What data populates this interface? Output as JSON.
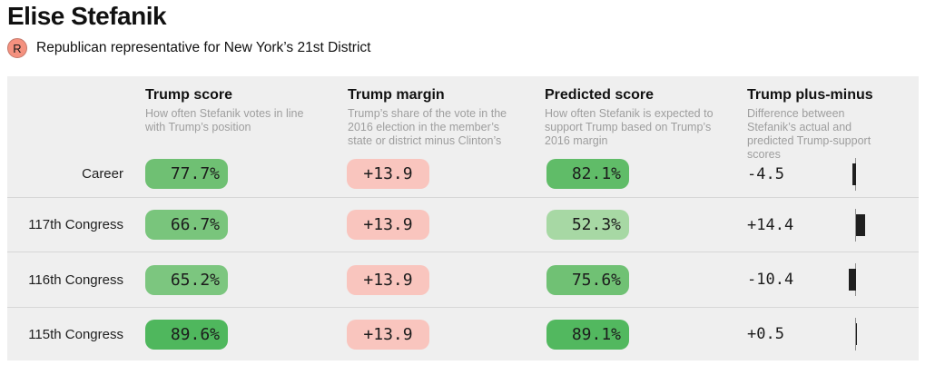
{
  "header": {
    "title": "Elise Stefanik",
    "party_badge": "R",
    "subtitle": "Republican representative for New York’s 21st District"
  },
  "colors": {
    "table_background": "#efefef",
    "margin_pill": "#f9c5be",
    "bar": "#1f1f1f",
    "axis": "#8f8f8f",
    "badge": "#f4917f"
  },
  "table": {
    "columns": [
      {
        "label": "Trump score",
        "description": "How often Stefanik votes in line with Trump’s position"
      },
      {
        "label": "Trump margin",
        "description": "Trump’s share of the vote in the 2016 election in the member’s state or district minus Clinton’s"
      },
      {
        "label": "Predicted score",
        "description": "How often Stefanik is expected to support Trump based on Trump’s 2016 margin"
      },
      {
        "label": "Trump plus-minus",
        "description": "Difference between Stefanik’s actual and predicted Trump-support scores"
      }
    ],
    "rows": [
      {
        "label": "Career",
        "trump_score": "77.7%",
        "trump_score_color": "#6fc073",
        "trump_margin": "+13.9",
        "predicted_score": "82.1%",
        "predicted_score_color": "#60bc68",
        "plus_minus": "-4.5",
        "plus_minus_value": -4.5
      },
      {
        "label": "117th Congress",
        "trump_score": "66.7%",
        "trump_score_color": "#79c57c",
        "trump_margin": "+13.9",
        "predicted_score": "52.3%",
        "predicted_score_color": "#a7d8a4",
        "plus_minus": "+14.4",
        "plus_minus_value": 14.4
      },
      {
        "label": "116th Congress",
        "trump_score": "65.2%",
        "trump_score_color": "#7cc67f",
        "trump_margin": "+13.9",
        "predicted_score": "75.6%",
        "predicted_score_color": "#70c174",
        "plus_minus": "-10.4",
        "plus_minus_value": -10.4
      },
      {
        "label": "115th Congress",
        "trump_score": "89.6%",
        "trump_score_color": "#4fb75d",
        "trump_margin": "+13.9",
        "predicted_score": "89.1%",
        "predicted_score_color": "#52b85f",
        "plus_minus": "+0.5",
        "plus_minus_value": 0.5
      }
    ]
  },
  "chart_data": {
    "type": "bar",
    "title": "Trump plus-minus",
    "categories": [
      "Career",
      "117th Congress",
      "116th Congress",
      "115th Congress"
    ],
    "values": [
      -4.5,
      14.4,
      -10.4,
      0.5
    ],
    "orientation": "horizontal",
    "baseline": 0
  }
}
